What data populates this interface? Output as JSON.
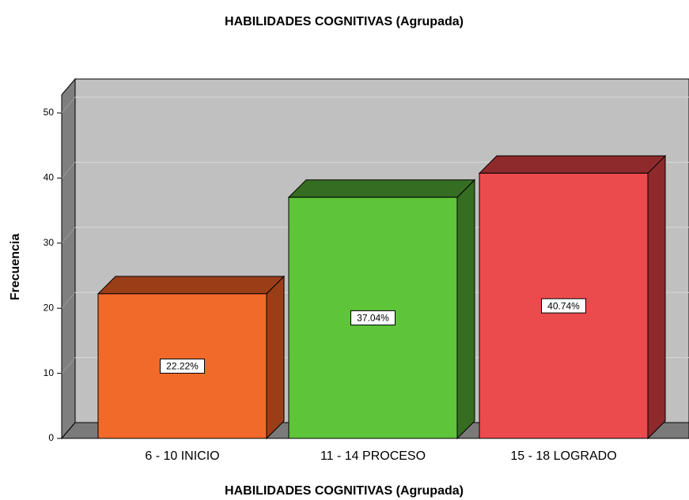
{
  "chart_data": {
    "type": "bar3d",
    "title": "HABILIDADES COGNITIVAS (Agrupada)",
    "x_label": "HABILIDADES COGNITIVAS (Agrupada)",
    "y_label": "Frecuencia",
    "categories": [
      "6 - 10 INICIO",
      "11 - 14 PROCESO",
      "15 - 18 LOGRADO"
    ],
    "values": [
      22.22,
      37.04,
      40.74
    ],
    "value_labels": [
      "22.22%",
      "37.04%",
      "40.74%"
    ],
    "colors": [
      "#f26a2a",
      "#5ec43a",
      "#ec4b4e"
    ],
    "shade_colors": [
      "#9a3e18",
      "#356e22",
      "#8e2a2c"
    ],
    "ylim": [
      0,
      50
    ],
    "yticks": [
      0,
      10,
      20,
      30,
      40,
      50
    ],
    "grid": true
  }
}
